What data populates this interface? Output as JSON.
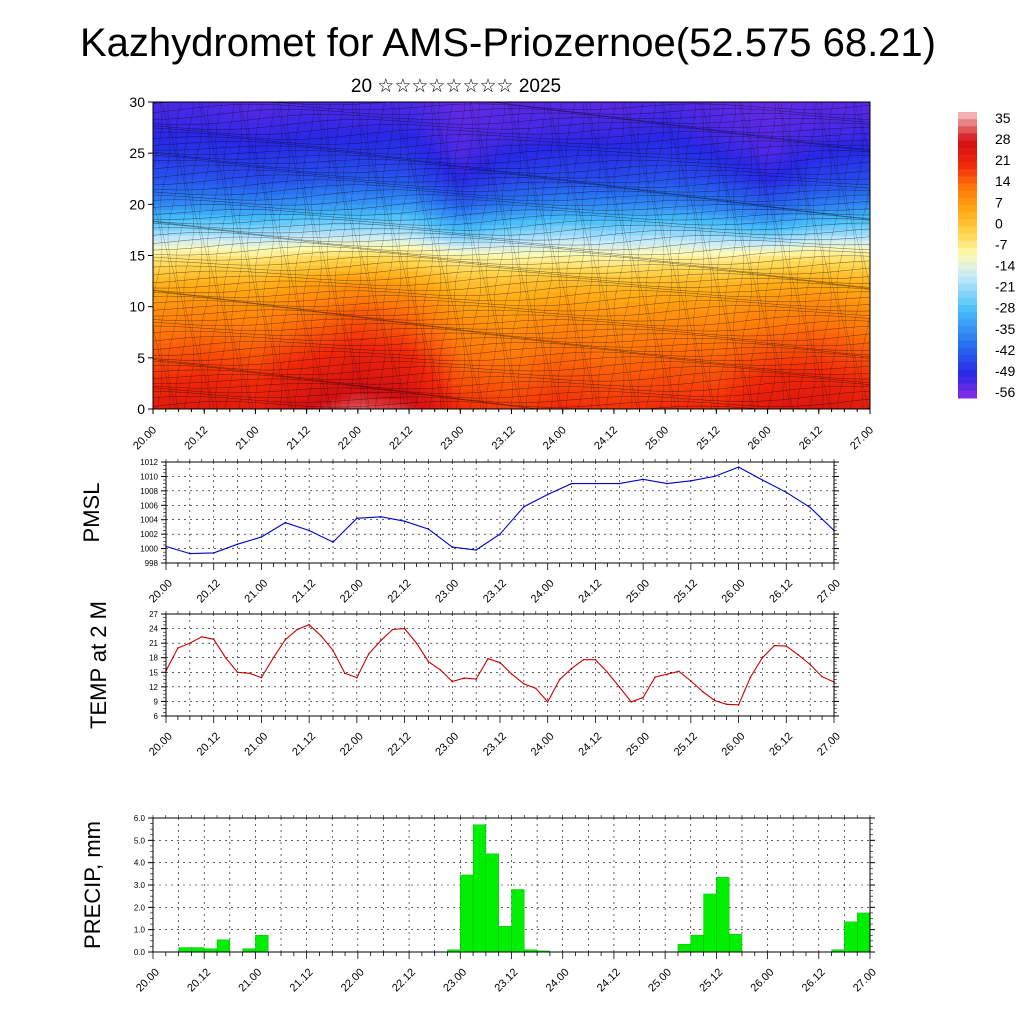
{
  "title": "Kazhydromet for AMS-Priozernoe(52.575 68.21)",
  "subtitle": "20 ☆☆☆☆☆☆☆☆ 2025",
  "x_tick_labels": [
    "20.00",
    "20.12",
    "21.00",
    "21.12",
    "22.00",
    "22.12",
    "23.00",
    "23.12",
    "24.00",
    "24.12",
    "25.00",
    "25.12",
    "26.00",
    "26.12",
    "27.00"
  ],
  "colors": {
    "pmsl_line": "#0000cc",
    "temp_line": "#cc0000",
    "precip_bar": "#00ee00",
    "precip_bar_edge": "#00aa00"
  },
  "chart_data": [
    {
      "type": "heatmap",
      "name": "upper-air-cross-section",
      "ylim": [
        0,
        30
      ],
      "y_ticks": [
        0,
        5,
        10,
        15,
        20,
        25,
        30
      ],
      "x_range_hours": [
        0,
        168
      ],
      "levels": [
        0,
        2.5,
        5,
        7.5,
        10,
        12.5,
        15,
        17.5,
        20,
        22.5,
        25,
        27.5,
        30
      ],
      "times_hours": [
        0,
        12,
        24,
        36,
        48,
        60,
        72,
        84,
        96,
        108,
        120,
        132,
        144,
        156,
        168
      ],
      "temperature_grid": [
        [
          24,
          25,
          23,
          28,
          32,
          30,
          20,
          18,
          20,
          19,
          20,
          20,
          25,
          26,
          24
        ],
        [
          20,
          21,
          20,
          24,
          27,
          25,
          16,
          15,
          17,
          16,
          17,
          17,
          21,
          22,
          20
        ],
        [
          16,
          17,
          16,
          20,
          23,
          21,
          13,
          12,
          14,
          13,
          14,
          14,
          17,
          18,
          16
        ],
        [
          12,
          13,
          12,
          15,
          18,
          16,
          10,
          9,
          11,
          10,
          11,
          11,
          13,
          14,
          12
        ],
        [
          8,
          9,
          8,
          11,
          14,
          12,
          6,
          5,
          7,
          6,
          7,
          7,
          9,
          10,
          8
        ],
        [
          2,
          3,
          2,
          5,
          7,
          5,
          0,
          0,
          1,
          0,
          1,
          1,
          3,
          4,
          2
        ],
        [
          -8,
          -7,
          -8,
          -6,
          -5,
          -6,
          -10,
          -11,
          -10,
          -11,
          -10,
          -10,
          -8,
          -7,
          -8
        ],
        [
          -24,
          -23,
          -24,
          -22,
          -22,
          -22,
          -30,
          -26,
          -24,
          -25,
          -24,
          -26,
          -30,
          -25,
          -24
        ],
        [
          -38,
          -37,
          -38,
          -36,
          -36,
          -36,
          -44,
          -40,
          -38,
          -38,
          -38,
          -40,
          -44,
          -40,
          -38
        ],
        [
          -46,
          -46,
          -47,
          -46,
          -45,
          -46,
          -52,
          -48,
          -47,
          -47,
          -46,
          -48,
          -52,
          -48,
          -47
        ],
        [
          -50,
          -50,
          -51,
          -50,
          -50,
          -50,
          -55,
          -52,
          -51,
          -51,
          -50,
          -52,
          -55,
          -52,
          -51
        ],
        [
          -53,
          -53,
          -54,
          -53,
          -53,
          -53,
          -56,
          -55,
          -54,
          -54,
          -53,
          -55,
          -56,
          -55,
          -54
        ],
        [
          -55,
          -55,
          -56,
          -55,
          -55,
          -55,
          -57,
          -56,
          -56,
          -56,
          -55,
          -56,
          -57,
          -56,
          -56
        ]
      ],
      "colorbar_labels": [
        "35",
        "28",
        "21",
        "14",
        "7",
        "0",
        "-7",
        "-14",
        "-21",
        "-28",
        "-35",
        "-42",
        "-49",
        "-56"
      ],
      "colorbar_range": [
        -60,
        38
      ]
    },
    {
      "type": "line",
      "name": "PMSL",
      "ylabel": "PMSL",
      "ylim": [
        998,
        1012
      ],
      "y_ticks": [
        "998",
        "1000",
        "1002",
        "1004",
        "1006",
        "1008",
        "1010",
        "1012"
      ],
      "x": [
        0,
        6,
        12,
        18,
        24,
        30,
        36,
        42,
        48,
        54,
        60,
        66,
        72,
        78,
        84,
        90,
        96,
        102,
        108,
        114,
        120,
        126,
        132,
        138,
        144,
        150,
        156,
        162,
        168
      ],
      "values": [
        1000.3,
        999.3,
        999.4,
        1000.6,
        1001.6,
        1003.6,
        1002.5,
        1000.9,
        1004.2,
        1004.4,
        1003.8,
        1002.7,
        1000.2,
        999.8,
        1002.0,
        1005.8,
        1007.5,
        1009.0,
        1009.0,
        1009.0,
        1009.6,
        1009.0,
        1009.4,
        1010.0,
        1011.3,
        1009.5,
        1007.8,
        1005.7,
        1002.5
      ],
      "grid": true
    },
    {
      "type": "line",
      "name": "TEMP at 2 M",
      "ylabel": "TEMP at 2 M",
      "ylim": [
        6,
        27
      ],
      "y_ticks": [
        "6",
        "9",
        "12",
        "15",
        "18",
        "21",
        "24",
        "27"
      ],
      "x": [
        0,
        3,
        6,
        9,
        12,
        15,
        18,
        21,
        24,
        27,
        30,
        33,
        36,
        39,
        42,
        45,
        48,
        51,
        54,
        57,
        60,
        63,
        66,
        69,
        72,
        75,
        78,
        81,
        84,
        87,
        90,
        93,
        96,
        99,
        102,
        105,
        108,
        111,
        114,
        117,
        120,
        123,
        126,
        129,
        132,
        135,
        138,
        141,
        144,
        147,
        150,
        153,
        156,
        159,
        162,
        165,
        168
      ],
      "values": [
        15.3,
        20.0,
        21.0,
        22.3,
        21.8,
        18.0,
        15.0,
        14.8,
        13.9,
        18.0,
        21.7,
        23.8,
        24.8,
        22.5,
        19.5,
        14.8,
        13.9,
        18.8,
        21.5,
        23.8,
        24.0,
        21.0,
        17.2,
        15.5,
        13.1,
        13.8,
        13.6,
        17.8,
        17.0,
        14.6,
        12.6,
        11.7,
        8.9,
        13.5,
        15.8,
        17.6,
        17.6,
        15.0,
        12.0,
        8.9,
        9.8,
        14.0,
        14.6,
        15.2,
        13.2,
        11.0,
        9.2,
        8.4,
        8.3,
        14.0,
        18.0,
        20.5,
        20.4,
        18.6,
        16.6,
        14.1,
        13.0
      ],
      "grid": true
    },
    {
      "type": "bar",
      "name": "PRECIP, mm",
      "ylabel": "PRECIP, mm",
      "ylim": [
        0,
        6
      ],
      "y_ticks": [
        "0.0",
        "1.0",
        "2.0",
        "3.0",
        "4.0",
        "5.0",
        "6.0"
      ],
      "bar_width_hours": 3,
      "x": [
        0,
        3,
        6,
        9,
        12,
        15,
        18,
        21,
        24,
        27,
        30,
        33,
        36,
        39,
        42,
        45,
        48,
        51,
        54,
        57,
        60,
        63,
        66,
        69,
        72,
        75,
        78,
        81,
        84,
        87,
        90,
        93,
        96,
        99,
        102,
        105,
        108,
        111,
        114,
        117,
        120,
        123,
        126,
        129,
        132,
        135,
        138,
        141,
        144,
        147,
        150,
        153,
        156,
        159,
        162,
        165
      ],
      "values": [
        0,
        0,
        0.2,
        0.2,
        0.15,
        0.55,
        0,
        0.15,
        0.75,
        0,
        0,
        0,
        0,
        0,
        0,
        0,
        0,
        0,
        0,
        0,
        0,
        0,
        0,
        0.1,
        3.45,
        5.7,
        4.4,
        1.15,
        2.8,
        0.1,
        0.05,
        0,
        0,
        0,
        0,
        0,
        0,
        0,
        0,
        0,
        0,
        0.35,
        0.75,
        2.6,
        3.35,
        0.8,
        0,
        0,
        0,
        0,
        0,
        0,
        0,
        0.1,
        1.35,
        1.75
      ],
      "grid": true
    }
  ]
}
